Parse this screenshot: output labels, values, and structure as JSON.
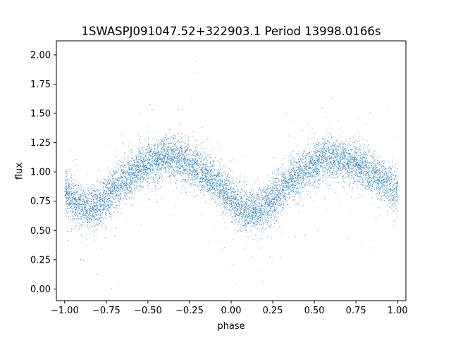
{
  "chart_data": {
    "type": "scatter",
    "title": "1SWASPJ091047.52+322903.1 Period 13998.0166s",
    "xlabel": "phase",
    "ylabel": "flux",
    "xlim": [
      -1.05,
      1.05
    ],
    "ylim": [
      -0.1,
      2.12
    ],
    "x_ticks": [
      -1.0,
      -0.75,
      -0.5,
      -0.25,
      0.0,
      0.25,
      0.5,
      0.75,
      1.0
    ],
    "x_tick_labels": [
      "−1.00",
      "−0.75",
      "−0.50",
      "−0.25",
      "0.00",
      "0.25",
      "0.50",
      "0.75",
      "1.00"
    ],
    "y_ticks": [
      0.0,
      0.25,
      0.5,
      0.75,
      1.0,
      1.25,
      1.5,
      1.75,
      2.0
    ],
    "y_tick_labels": [
      "0.00",
      "0.25",
      "0.50",
      "0.75",
      "1.00",
      "1.25",
      "1.50",
      "1.75",
      "2.00"
    ],
    "grid": false,
    "legend": "none",
    "point_color": "#1f77b4",
    "series": [
      {
        "x": [
          -1.0,
          -0.95,
          -0.9,
          -0.85,
          -0.8,
          -0.75,
          -0.7,
          -0.65,
          -0.6,
          -0.55,
          -0.5,
          -0.45,
          -0.4,
          -0.35,
          -0.3,
          -0.25,
          -0.2,
          -0.15,
          -0.1,
          -0.05,
          0.0,
          0.05,
          0.1,
          0.15,
          0.2,
          0.25,
          0.3,
          0.35,
          0.4,
          0.45,
          0.5,
          0.55,
          0.6,
          0.65,
          0.7,
          0.75,
          0.8,
          0.85,
          0.9,
          0.95,
          1.0
        ],
        "y": [
          0.82,
          0.76,
          0.7,
          0.68,
          0.72,
          0.78,
          0.86,
          0.93,
          0.98,
          1.03,
          1.07,
          1.1,
          1.12,
          1.12,
          1.1,
          1.06,
          1.02,
          0.97,
          0.91,
          0.84,
          0.77,
          0.7,
          0.66,
          0.66,
          0.7,
          0.77,
          0.84,
          0.91,
          0.97,
          1.02,
          1.06,
          1.1,
          1.12,
          1.12,
          1.1,
          1.07,
          1.04,
          0.99,
          0.94,
          0.88,
          0.82
        ]
      }
    ]
  }
}
